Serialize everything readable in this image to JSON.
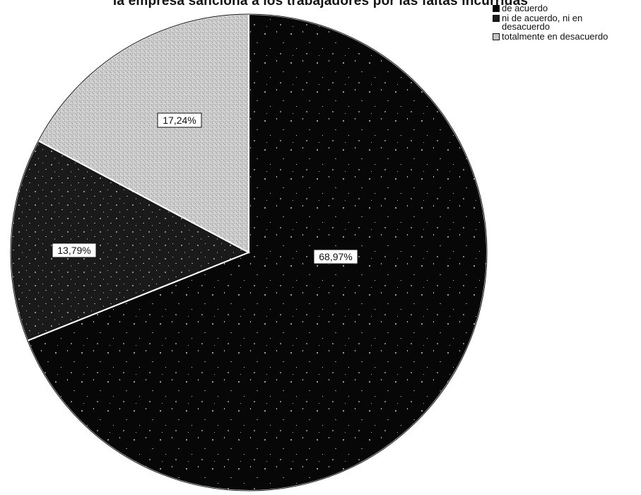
{
  "chart_data": {
    "type": "pie",
    "title": "la empresa sanciona a los trabajadores por las faltas incurridas",
    "categories": [
      "de acuerdo",
      "ni de acuerdo, ni en desacuerdo",
      "totalmente en desacuerdo"
    ],
    "values": [
      68.97,
      13.79,
      17.24
    ],
    "labels": [
      "68,97%",
      "13,79%",
      "17,24%"
    ],
    "colors": [
      "#060606",
      "#1c1c1c",
      "#c4c4c4"
    ],
    "start_angle_deg": 0,
    "direction": "clockwise",
    "legend_position": "top-right"
  }
}
